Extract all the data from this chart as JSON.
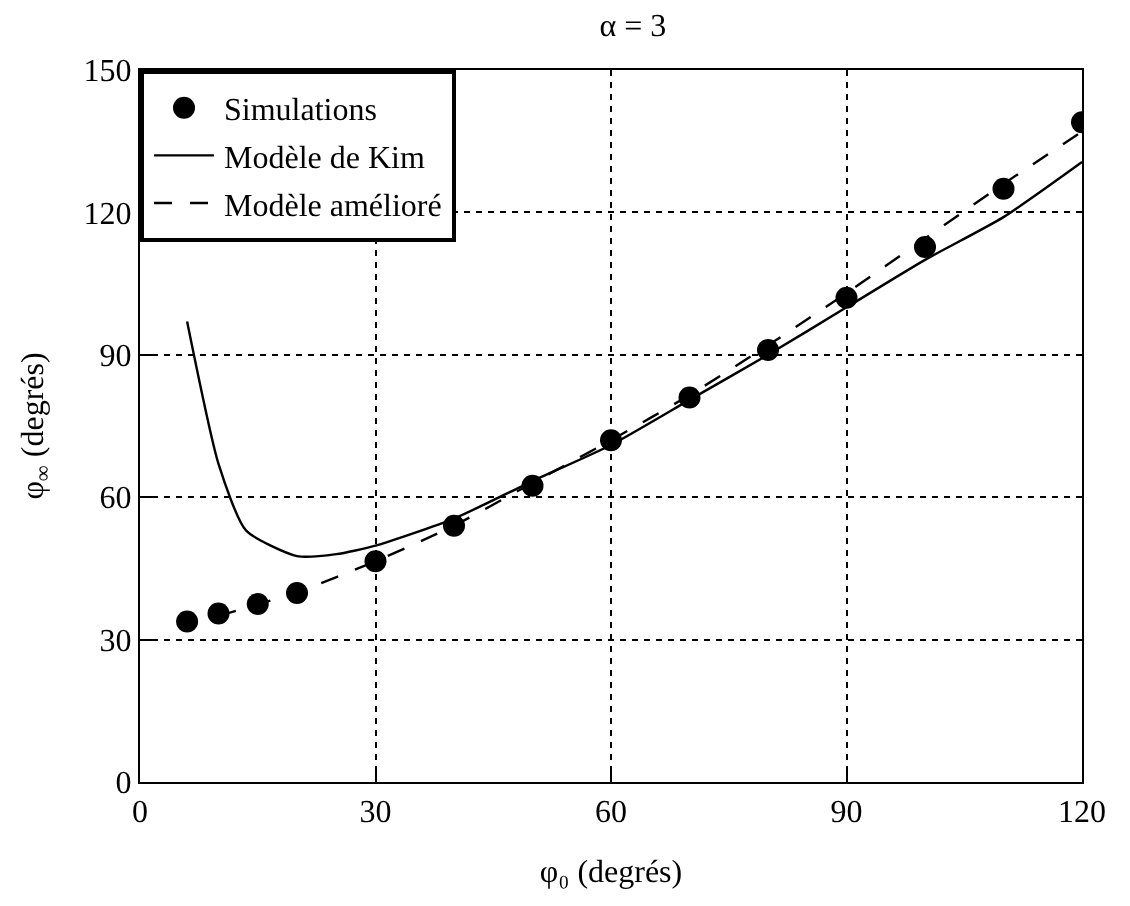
{
  "chart_data": {
    "type": "line",
    "title": "α = 3",
    "xlabel": "φ₀ (degrés)",
    "ylabel": "φ$_{∞}$ (degrés)",
    "xlim": [
      0,
      120
    ],
    "xticks": [
      0,
      30,
      60,
      90,
      120
    ],
    "ylim": [
      0,
      150
    ],
    "yticks": [
      0,
      30,
      60,
      90,
      120,
      150
    ],
    "grid": true,
    "legend": "top left",
    "series": [
      {
        "name": "Simulations",
        "type": "scatter",
        "marker": "circle",
        "color": "#000000",
        "x": [
          6,
          10,
          15,
          20,
          30,
          40,
          50,
          60,
          70,
          80,
          90,
          100,
          110,
          120
        ],
        "values": [
          33.8,
          35.5,
          37.5,
          39.8,
          46.5,
          54,
          62.4,
          72,
          81,
          91,
          102,
          112.7,
          125,
          139
        ]
      },
      {
        "name": "Modèle de Kim",
        "line_style": "solid",
        "color": "#000000",
        "x": [
          6,
          10,
          13.5,
          20,
          25,
          30,
          40,
          50,
          60,
          70,
          80,
          90,
          100,
          110,
          120
        ],
        "values": [
          97,
          67,
          53,
          47.6,
          48,
          49.8,
          55.5,
          63.4,
          71,
          80.5,
          90,
          100,
          110,
          119,
          130.6
        ]
      },
      {
        "name": "Modèle amélioré",
        "line_style": "dashed",
        "color": "#000000",
        "x": [
          10,
          20,
          30,
          40,
          50,
          60,
          70,
          80,
          90,
          100,
          110,
          120
        ],
        "values": [
          35,
          40,
          46.5,
          54,
          63,
          72,
          81.5,
          92,
          103,
          114.5,
          126,
          137
        ]
      }
    ]
  }
}
